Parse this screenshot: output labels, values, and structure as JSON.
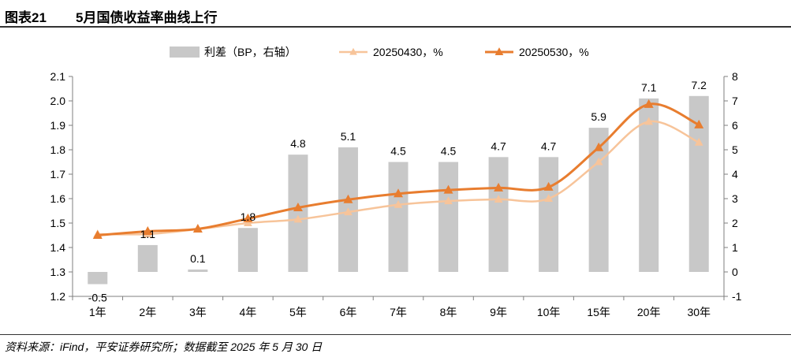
{
  "header": {
    "figure_number": "图表21",
    "title": "5月国债收益率曲线上行"
  },
  "source": "资料来源：iFind，平安证券研究所；数据截至 2025 年 5 月 30 日",
  "chart_data": {
    "type": "bar+line",
    "title": "5月国债收益率曲线上行",
    "categories": [
      "1年",
      "2年",
      "3年",
      "4年",
      "5年",
      "6年",
      "7年",
      "8年",
      "9年",
      "10年",
      "15年",
      "20年",
      "30年"
    ],
    "legend_position": "top-center",
    "grid": false,
    "series": [
      {
        "name": "利差（BP，右轴）",
        "kind": "bar",
        "axis": "right",
        "color": "#c8c8c8",
        "values": [
          -0.5,
          1.1,
          0.1,
          1.8,
          4.8,
          5.1,
          4.5,
          4.5,
          4.7,
          4.7,
          5.9,
          7.1,
          7.2
        ],
        "labels": [
          "-0.5",
          "1.1",
          "0.1",
          "1.8",
          "4.8",
          "5.1",
          "4.5",
          "4.5",
          "4.7",
          "4.7",
          "5.9",
          "7.1",
          "7.2"
        ]
      },
      {
        "name": "20250430，%",
        "kind": "line",
        "axis": "left",
        "color": "#f7c49a",
        "values": [
          1.455,
          1.455,
          1.475,
          1.5,
          1.515,
          1.545,
          1.575,
          1.59,
          1.597,
          1.6,
          1.75,
          1.915,
          1.83
        ]
      },
      {
        "name": "20250530，%",
        "kind": "line",
        "axis": "left",
        "color": "#e87d2f",
        "values": [
          1.45,
          1.466,
          1.476,
          1.518,
          1.563,
          1.596,
          1.62,
          1.635,
          1.644,
          1.647,
          1.809,
          1.986,
          1.902
        ]
      }
    ],
    "y_left": {
      "min": 1.2,
      "max": 2.1,
      "ticks": [
        "1.2",
        "1.3",
        "1.4",
        "1.5",
        "1.6",
        "1.7",
        "1.8",
        "1.9",
        "2.0",
        "2.1"
      ]
    },
    "y_right": {
      "min": -1,
      "max": 8,
      "ticks": [
        "-1",
        "0",
        "1",
        "2",
        "3",
        "4",
        "5",
        "6",
        "7",
        "8"
      ]
    }
  }
}
